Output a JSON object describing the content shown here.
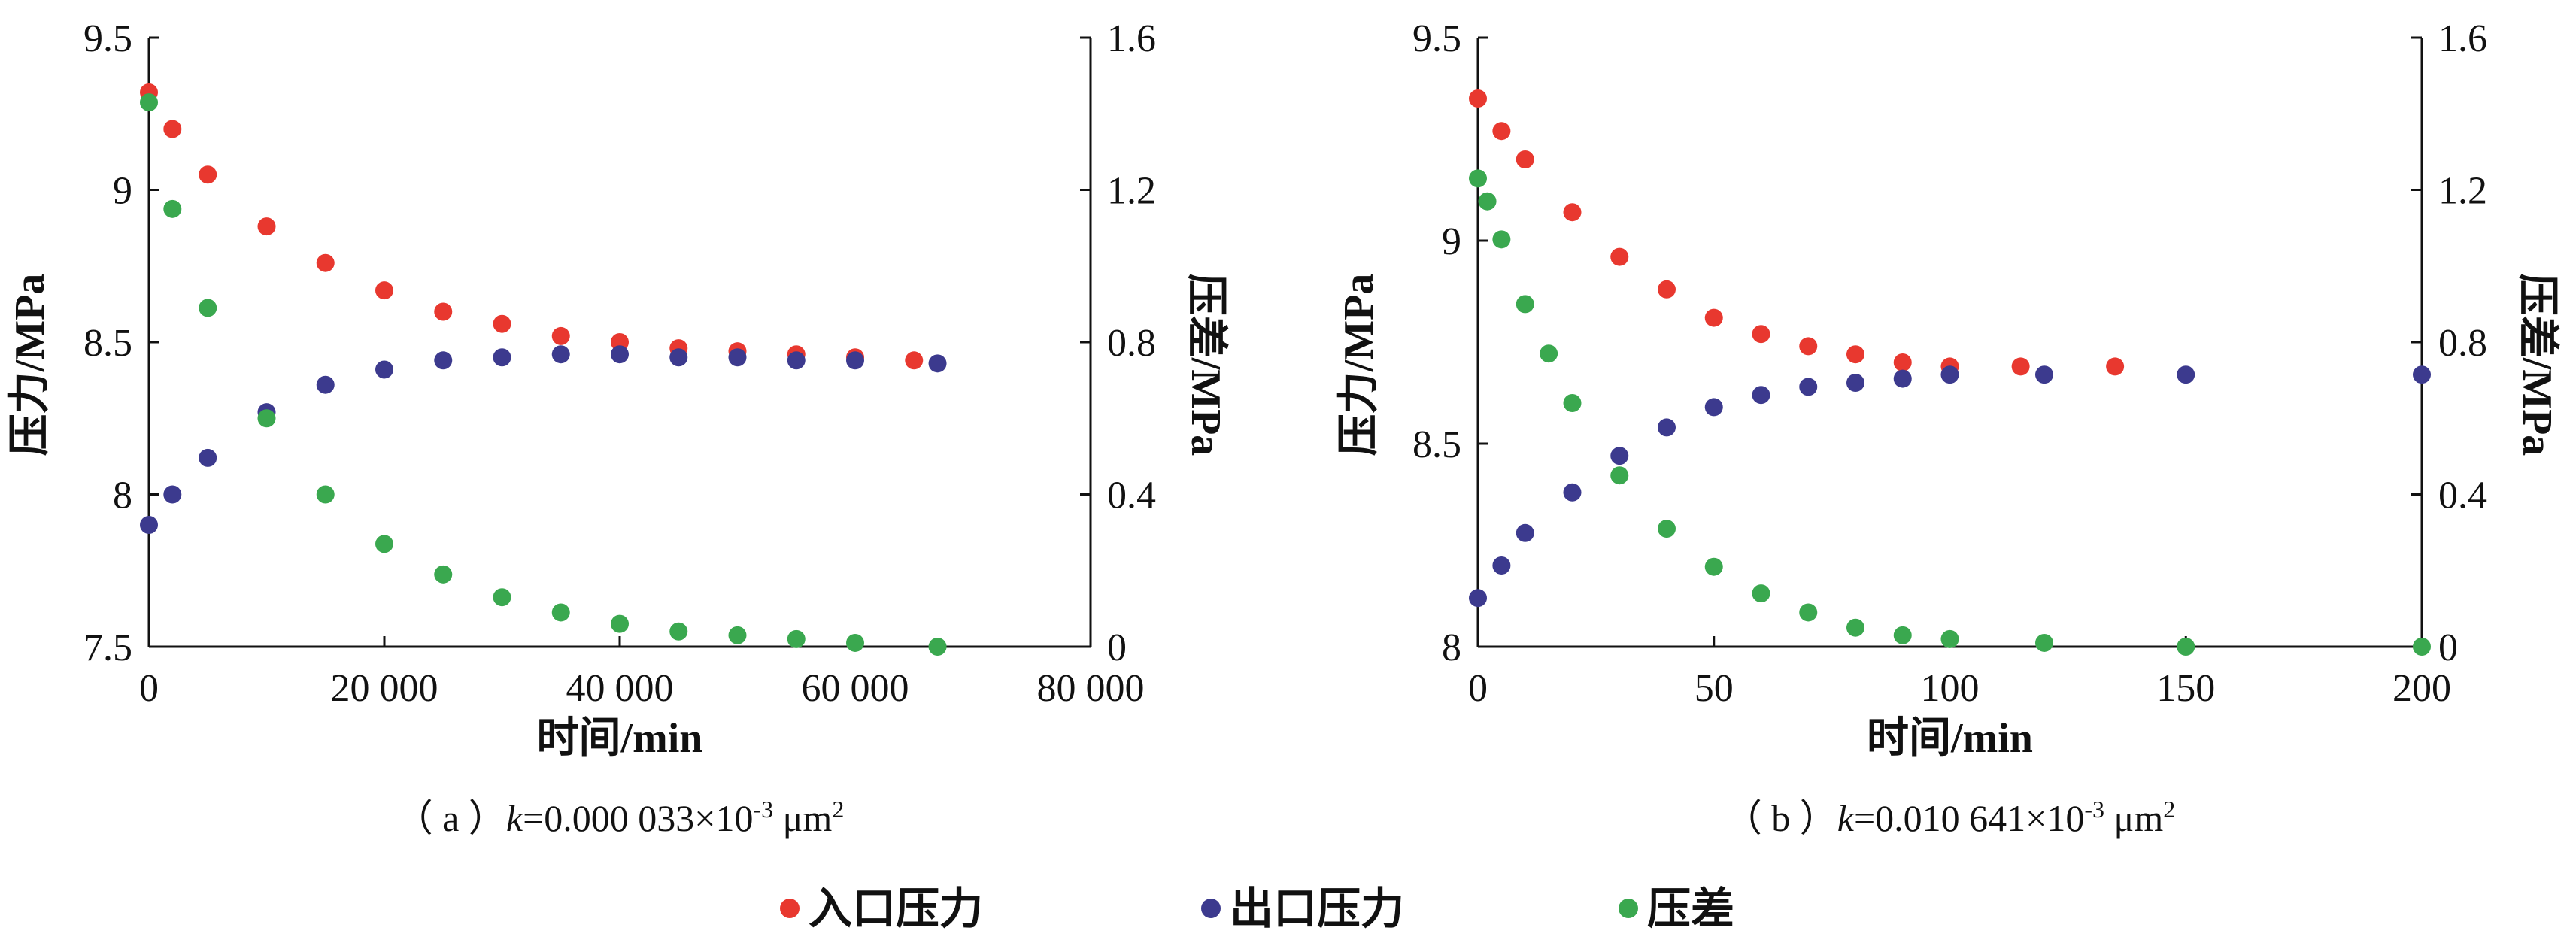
{
  "legend": {
    "items": [
      {
        "label": "入口压力",
        "color": "#e8382f"
      },
      {
        "label": "出口压力",
        "color": "#3c3a8e"
      },
      {
        "label": "压差",
        "color": "#3aa84f"
      }
    ]
  },
  "chart_data": [
    {
      "type": "scatter",
      "caption": {
        "prefix": "（ a ）",
        "var": "k",
        "value": "=0.000 033×10",
        "exp": "-3",
        "unit": " μm",
        "unit_exp": "2"
      },
      "xlabel": "时间/min",
      "ylabel": "压力/MPa",
      "y2label": "压差/MPa",
      "xlim": [
        0,
        80000
      ],
      "ylim": [
        7.5,
        9.5
      ],
      "y2lim": [
        0,
        1.6
      ],
      "xticks": [
        0,
        20000,
        40000,
        60000,
        80000
      ],
      "xtick_labels": [
        "0",
        "20 000",
        "40 000",
        "60 000",
        "80 000"
      ],
      "yticks": [
        7.5,
        8,
        8.5,
        9,
        9.5
      ],
      "ytick_labels": [
        "7.5",
        "8",
        "8.5",
        "9",
        "9.5"
      ],
      "y2ticks": [
        0,
        0.4,
        0.8,
        1.2,
        1.6
      ],
      "y2tick_labels": [
        "0",
        "0.4",
        "0.8",
        "1.2",
        "1.6"
      ],
      "grid": false,
      "series": [
        {
          "name": "入口压力",
          "axis": "left",
          "color": "#e8382f",
          "x": [
            0,
            2000,
            5000,
            10000,
            15000,
            20000,
            25000,
            30000,
            35000,
            40000,
            45000,
            50000,
            55000,
            60000,
            65000
          ],
          "y": [
            9.32,
            9.2,
            9.05,
            8.88,
            8.76,
            8.67,
            8.6,
            8.56,
            8.52,
            8.5,
            8.48,
            8.47,
            8.46,
            8.45,
            8.44
          ]
        },
        {
          "name": "出口压力",
          "axis": "left",
          "color": "#3c3a8e",
          "x": [
            0,
            2000,
            5000,
            10000,
            15000,
            20000,
            25000,
            30000,
            35000,
            40000,
            45000,
            50000,
            55000,
            60000,
            67000
          ],
          "y": [
            7.9,
            8.0,
            8.12,
            8.27,
            8.36,
            8.41,
            8.44,
            8.45,
            8.46,
            8.46,
            8.45,
            8.45,
            8.44,
            8.44,
            8.43
          ]
        },
        {
          "name": "压差",
          "axis": "right",
          "color": "#3aa84f",
          "x": [
            0,
            2000,
            5000,
            10000,
            15000,
            20000,
            25000,
            30000,
            35000,
            40000,
            45000,
            50000,
            55000,
            60000,
            67000
          ],
          "y": [
            1.43,
            1.15,
            0.89,
            0.6,
            0.4,
            0.27,
            0.19,
            0.13,
            0.09,
            0.06,
            0.04,
            0.03,
            0.02,
            0.01,
            0.0
          ]
        }
      ]
    },
    {
      "type": "scatter",
      "caption": {
        "prefix": "（ b ）",
        "var": "k",
        "value": "=0.010 641×10",
        "exp": "-3",
        "unit": " μm",
        "unit_exp": "2"
      },
      "xlabel": "时间/min",
      "ylabel": "压力/MPa",
      "y2label": "压差/MPa",
      "xlim": [
        0,
        200
      ],
      "ylim": [
        8,
        9.5
      ],
      "y2lim": [
        0,
        1.6
      ],
      "xticks": [
        0,
        50,
        100,
        150,
        200
      ],
      "xtick_labels": [
        "0",
        "50",
        "100",
        "150",
        "200"
      ],
      "yticks": [
        8,
        8.5,
        9,
        9.5
      ],
      "ytick_labels": [
        "8",
        "8.5",
        "9",
        "9.5"
      ],
      "y2ticks": [
        0,
        0.4,
        0.8,
        1.2,
        1.6
      ],
      "y2tick_labels": [
        "0",
        "0.4",
        "0.8",
        "1.2",
        "1.6"
      ],
      "grid": false,
      "series": [
        {
          "name": "入口压力",
          "axis": "left",
          "color": "#e8382f",
          "x": [
            0,
            5,
            10,
            20,
            30,
            40,
            50,
            60,
            70,
            80,
            90,
            100,
            115,
            135
          ],
          "y": [
            9.35,
            9.27,
            9.2,
            9.07,
            8.96,
            8.88,
            8.81,
            8.77,
            8.74,
            8.72,
            8.7,
            8.69,
            8.69,
            8.69
          ]
        },
        {
          "name": "出口压力",
          "axis": "left",
          "color": "#3c3a8e",
          "x": [
            0,
            5,
            10,
            20,
            30,
            40,
            50,
            60,
            70,
            80,
            90,
            100,
            120,
            150,
            200
          ],
          "y": [
            8.12,
            8.2,
            8.28,
            8.38,
            8.47,
            8.54,
            8.59,
            8.62,
            8.64,
            8.65,
            8.66,
            8.67,
            8.67,
            8.67,
            8.67
          ]
        },
        {
          "name": "压差",
          "axis": "right",
          "color": "#3aa84f",
          "x": [
            0,
            2,
            5,
            10,
            15,
            20,
            30,
            40,
            50,
            60,
            70,
            80,
            90,
            100,
            120,
            150,
            200
          ],
          "y": [
            1.23,
            1.17,
            1.07,
            0.9,
            0.77,
            0.64,
            0.45,
            0.31,
            0.21,
            0.14,
            0.09,
            0.05,
            0.03,
            0.02,
            0.01,
            0.0,
            0.0
          ]
        }
      ]
    }
  ]
}
